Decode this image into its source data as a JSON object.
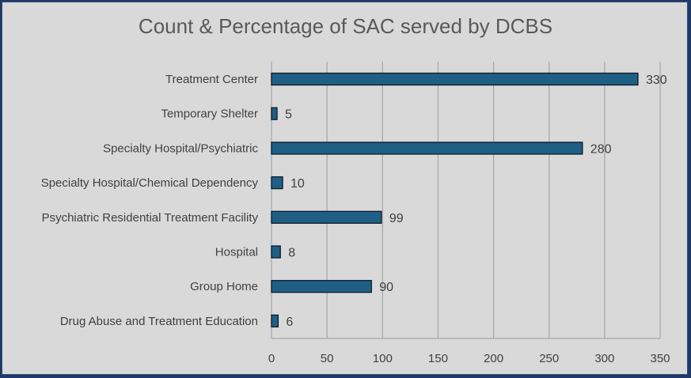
{
  "chart_data": {
    "type": "bar",
    "orientation": "horizontal",
    "title": "Count & Percentage of SAC served by DCBS",
    "xlabel": "",
    "ylabel": "",
    "categories": [
      "Treatment Center",
      "Temporary Shelter",
      "Specialty Hospital/Psychiatric",
      "Specialty Hospital/Chemical Dependency",
      "Psychiatric Residential Treatment Facility",
      "Hospital",
      "Group Home",
      "Drug Abuse and Treatment Education"
    ],
    "values": [
      330,
      5,
      280,
      10,
      99,
      8,
      90,
      6
    ],
    "xlim": [
      0,
      350
    ],
    "xticks": [
      "0",
      "50",
      "100",
      "150",
      "200",
      "250",
      "300",
      "350"
    ],
    "grid": "vertical",
    "legend": "none",
    "colors": {
      "bar": "#1f5f86",
      "bar_edge": "#0d1b2a",
      "grid": "#a6a6a6",
      "background": "#d9d9d9"
    }
  }
}
